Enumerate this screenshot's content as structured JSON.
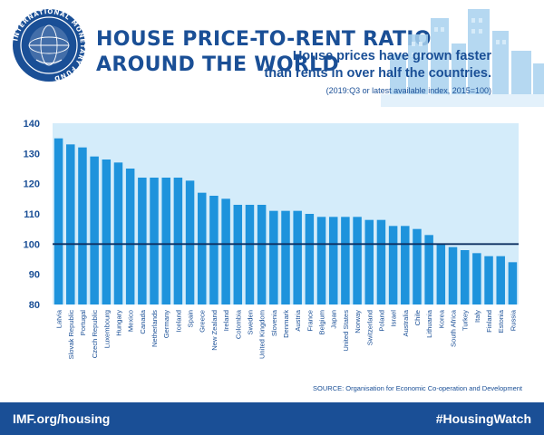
{
  "header": {
    "title_line1": "HOUSE PRICE-TO-RENT RATIO",
    "title_line2": "AROUND THE WORLD",
    "logo_icon": "imf-seal-icon",
    "logo_text": "INTERNATIONAL MONETARY FUND"
  },
  "annotation": {
    "line1": "House prices have grown faster",
    "line2": "than rents in over half the countries.",
    "note": "(2019:Q3 or latest available index, 2015=100)"
  },
  "source": "SOURCE: Organisation for Economic Co-operation and Development",
  "footer": {
    "left": "IMF.org/housing",
    "right": "#HousingWatch"
  },
  "colors": {
    "brand": "#1a4f96",
    "bar": "#1e93dc",
    "plot_bg": "#d4ecfa",
    "reference_line": "#0d2f61"
  },
  "chart_data": {
    "type": "bar",
    "categories": [
      "Latvia",
      "Slovak Republic",
      "Portugal",
      "Czech Republic",
      "Luxembourg",
      "Hungary",
      "Mexico",
      "Canada",
      "Netherlands",
      "Germany",
      "Iceland",
      "Spain",
      "Greece",
      "New Zealand",
      "Ireland",
      "Colombia",
      "Sweden",
      "United Kingdom",
      "Slovenia",
      "Denmark",
      "Austria",
      "France",
      "Belgium",
      "Japan",
      "United States",
      "Norway",
      "Switzerland",
      "Poland",
      "Israel",
      "Australia",
      "Chile",
      "Lithuania",
      "Korea",
      "South Africa",
      "Turkey",
      "Italy",
      "Finland",
      "Estonia",
      "Russia"
    ],
    "values": [
      135,
      133,
      132,
      129,
      128,
      127,
      125,
      122,
      122,
      122,
      122,
      121,
      117,
      116,
      115,
      113,
      113,
      113,
      111,
      111,
      111,
      110,
      109,
      109,
      109,
      109,
      108,
      108,
      106,
      106,
      105,
      103,
      100,
      99,
      98,
      97,
      96,
      96,
      94
    ],
    "ylim": [
      80,
      140
    ],
    "yticks": [
      "80",
      "90",
      "100",
      "110",
      "120",
      "130",
      "140"
    ],
    "reference_value": 100,
    "grid": false
  }
}
